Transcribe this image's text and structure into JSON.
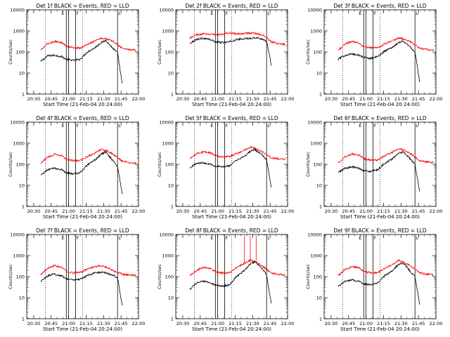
{
  "page": {
    "xlabel": "Start Time (21-Feb-04 20:24:00)",
    "ylabel": "Counts/sec",
    "x_ticks": [
      "20:30",
      "20:45",
      "21:00",
      "21:15",
      "21:30",
      "21:45",
      "22:00"
    ],
    "y_ticks": [
      "1",
      "10",
      "100",
      "1000",
      "10000"
    ],
    "colors": {
      "events": "#000000",
      "lld": "#ff0000"
    }
  },
  "chart_data": [
    {
      "type": "line",
      "title": "Det 1f BLACK = Events, RED = LLD",
      "xlabel": "Start Time (21-Feb-04 20:24:00)",
      "ylabel": "Counts/sec",
      "xlim": [
        "20:24",
        "22:00"
      ],
      "ylim": [
        1,
        10000
      ],
      "y_scale": "log",
      "x": [
        "20:36",
        "20:42",
        "20:48",
        "20:54",
        "20:58",
        "21:04",
        "21:10",
        "21:16",
        "21:22",
        "21:28",
        "21:32",
        "21:38",
        "21:42",
        "21:46",
        "21:52",
        "21:58"
      ],
      "series": [
        {
          "name": "Events",
          "values": [
            35,
            65,
            70,
            60,
            45,
            40,
            45,
            100,
            150,
            280,
            350,
            150,
            90,
            3,
            null,
            null
          ]
        },
        {
          "name": "LLD",
          "values": [
            120,
            250,
            320,
            280,
            190,
            160,
            150,
            230,
            330,
            450,
            420,
            320,
            220,
            150,
            130,
            120
          ]
        }
      ],
      "annotations": {
        "dotted_vlines": [
          "20:40",
          "21:12"
        ],
        "solid_vlines": [
          "20:58",
          "21:00",
          "21:06",
          "21:42"
        ],
        "markers": [
          "E",
          "F",
          "L"
        ]
      }
    },
    {
      "type": "line",
      "title": "Det 2f BLACK = Events, RED = LLD",
      "xlabel": "Start Time (21-Feb-04 20:24:00)",
      "ylabel": "Counts/sec",
      "xlim": [
        "20:24",
        "22:00"
      ],
      "ylim": [
        1,
        10000
      ],
      "y_scale": "log",
      "x": [
        "20:36",
        "20:42",
        "20:48",
        "20:54",
        "20:58",
        "21:04",
        "21:10",
        "21:16",
        "21:22",
        "21:28",
        "21:32",
        "21:38",
        "21:42",
        "21:46",
        "21:52",
        "21:58"
      ],
      "series": [
        {
          "name": "Events",
          "values": [
            260,
            400,
            450,
            380,
            300,
            280,
            300,
            380,
            420,
            450,
            480,
            420,
            320,
            25,
            null,
            null
          ]
        },
        {
          "name": "LLD",
          "values": [
            450,
            650,
            720,
            700,
            650,
            700,
            800,
            700,
            750,
            800,
            760,
            650,
            480,
            300,
            250,
            230
          ]
        }
      ],
      "annotations": {
        "dotted_vlines": [
          "20:40",
          "21:12"
        ],
        "solid_vlines": [
          "20:58",
          "21:00",
          "21:06",
          "21:42"
        ],
        "markers": [
          "E",
          "F",
          "L"
        ]
      }
    },
    {
      "type": "line",
      "title": "Det 3f BLACK = Events, RED = LLD",
      "xlabel": "Start Time (21-Feb-04 20:24:00)",
      "ylabel": "Counts/sec",
      "xlim": [
        "20:24",
        "22:00"
      ],
      "ylim": [
        1,
        10000
      ],
      "y_scale": "log",
      "x": [
        "20:36",
        "20:42",
        "20:48",
        "20:54",
        "20:58",
        "21:04",
        "21:10",
        "21:16",
        "21:22",
        "21:28",
        "21:32",
        "21:38",
        "21:42",
        "21:46",
        "21:52",
        "21:58"
      ],
      "series": [
        {
          "name": "Events",
          "values": [
            45,
            70,
            80,
            70,
            55,
            50,
            60,
            110,
            160,
            280,
            330,
            170,
            100,
            4,
            null,
            null
          ]
        },
        {
          "name": "LLD",
          "values": [
            120,
            240,
            320,
            270,
            180,
            160,
            160,
            240,
            330,
            450,
            420,
            310,
            220,
            150,
            130,
            120
          ]
        }
      ],
      "annotations": {
        "dotted_vlines": [
          "20:40",
          "21:12"
        ],
        "solid_vlines": [
          "20:58",
          "21:00",
          "21:06",
          "21:42"
        ],
        "markers": [
          "E",
          "F",
          "L"
        ]
      }
    },
    {
      "type": "line",
      "title": "Det 4f BLACK = Events, RED = LLD",
      "xlabel": "Start Time (21-Feb-04 20:24:00)",
      "ylabel": "Counts/sec",
      "xlim": [
        "20:24",
        "22:00"
      ],
      "ylim": [
        1,
        10000
      ],
      "y_scale": "log",
      "x": [
        "20:36",
        "20:42",
        "20:48",
        "20:54",
        "20:58",
        "21:04",
        "21:10",
        "21:16",
        "21:22",
        "21:28",
        "21:32",
        "21:38",
        "21:42",
        "21:46",
        "21:52",
        "21:58"
      ],
      "series": [
        {
          "name": "Events",
          "values": [
            30,
            55,
            65,
            55,
            40,
            35,
            40,
            90,
            150,
            300,
            380,
            150,
            80,
            4,
            null,
            null
          ]
        },
        {
          "name": "LLD",
          "values": [
            110,
            220,
            300,
            260,
            170,
            150,
            150,
            230,
            330,
            520,
            450,
            300,
            210,
            140,
            120,
            110
          ]
        }
      ],
      "annotations": {
        "dotted_vlines": [
          "20:40",
          "21:12"
        ],
        "solid_vlines": [
          "20:58",
          "21:00",
          "21:06",
          "21:42"
        ],
        "markers": [
          "E",
          "F",
          "L"
        ]
      }
    },
    {
      "type": "line",
      "title": "Det 5f BLACK = Events, RED = LLD",
      "xlabel": "Start Time (21-Feb-04 20:24:00)",
      "ylabel": "Counts/sec",
      "xlim": [
        "20:24",
        "22:00"
      ],
      "ylim": [
        1,
        10000
      ],
      "y_scale": "log",
      "x": [
        "20:36",
        "20:42",
        "20:48",
        "20:54",
        "20:58",
        "21:04",
        "21:10",
        "21:16",
        "21:22",
        "21:28",
        "21:32",
        "21:38",
        "21:42",
        "21:46",
        "21:52",
        "21:58"
      ],
      "series": [
        {
          "name": "Events",
          "values": [
            70,
            110,
            120,
            100,
            80,
            75,
            85,
            150,
            220,
            420,
            500,
            280,
            160,
            8,
            null,
            null
          ]
        },
        {
          "name": "LLD",
          "values": [
            180,
            320,
            400,
            350,
            260,
            230,
            230,
            320,
            430,
            650,
            580,
            400,
            290,
            200,
            180,
            170
          ]
        }
      ],
      "annotations": {
        "dotted_vlines": [
          "20:40",
          "21:12"
        ],
        "solid_vlines": [
          "20:58",
          "21:00",
          "21:06",
          "21:42"
        ],
        "markers": [
          "E",
          "F",
          "L"
        ]
      }
    },
    {
      "type": "line",
      "title": "Det 6f BLACK = Events, RED = LLD",
      "xlabel": "Start Time (21-Feb-04 20:24:00)",
      "ylabel": "Counts/sec",
      "xlim": [
        "20:24",
        "22:00"
      ],
      "ylim": [
        1,
        10000
      ],
      "y_scale": "log",
      "x": [
        "20:36",
        "20:42",
        "20:48",
        "20:54",
        "20:58",
        "21:04",
        "21:10",
        "21:16",
        "21:22",
        "21:28",
        "21:32",
        "21:38",
        "21:42",
        "21:46",
        "21:52",
        "21:58"
      ],
      "series": [
        {
          "name": "Events",
          "values": [
            40,
            65,
            75,
            65,
            50,
            45,
            55,
            110,
            170,
            330,
            400,
            180,
            100,
            5,
            null,
            null
          ]
        },
        {
          "name": "LLD",
          "values": [
            120,
            230,
            310,
            270,
            180,
            160,
            160,
            250,
            350,
            550,
            480,
            320,
            220,
            150,
            130,
            120
          ]
        }
      ],
      "annotations": {
        "dotted_vlines": [
          "20:40",
          "21:12"
        ],
        "solid_vlines": [
          "20:58",
          "21:00",
          "21:06",
          "21:42"
        ],
        "markers": [
          "E",
          "F",
          "L"
        ]
      }
    },
    {
      "type": "line",
      "title": "Det 7f BLACK = Events, RED = LLD",
      "xlabel": "Start Time (21-Feb-04 20:24:00)",
      "ylabel": "Counts/sec",
      "xlim": [
        "20:24",
        "22:00"
      ],
      "ylim": [
        1,
        10000
      ],
      "y_scale": "log",
      "x": [
        "20:36",
        "20:42",
        "20:48",
        "20:54",
        "20:58",
        "21:04",
        "21:10",
        "21:16",
        "21:22",
        "21:28",
        "21:32",
        "21:38",
        "21:42",
        "21:46",
        "21:52",
        "21:58"
      ],
      "series": [
        {
          "name": "Events",
          "values": [
            60,
            110,
            130,
            110,
            80,
            70,
            75,
            110,
            150,
            160,
            150,
            120,
            90,
            4,
            null,
            null
          ]
        },
        {
          "name": "LLD",
          "values": [
            120,
            250,
            330,
            280,
            180,
            150,
            160,
            220,
            300,
            330,
            280,
            200,
            160,
            130,
            120,
            115
          ]
        }
      ],
      "annotations": {
        "dotted_vlines": [
          "20:40",
          "21:12"
        ],
        "solid_vlines": [
          "20:58",
          "21:00",
          "21:06",
          "21:42"
        ],
        "markers": [
          "E",
          "F",
          "L"
        ]
      }
    },
    {
      "type": "line",
      "title": "Det 8f BLACK = Events, RED = LLD",
      "xlabel": "Start Time (21-Feb-04 20:24:00)",
      "ylabel": "Counts/sec",
      "xlim": [
        "20:24",
        "22:00"
      ],
      "ylim": [
        1,
        10000
      ],
      "y_scale": "log",
      "x": [
        "20:36",
        "20:42",
        "20:48",
        "20:54",
        "20:58",
        "21:04",
        "21:10",
        "21:16",
        "21:22",
        "21:28",
        "21:32",
        "21:38",
        "21:42",
        "21:46",
        "21:52",
        "21:58"
      ],
      "series": [
        {
          "name": "Events",
          "values": [
            25,
            50,
            60,
            50,
            40,
            35,
            40,
            100,
            180,
            400,
            520,
            250,
            120,
            5,
            null,
            null
          ]
        },
        {
          "name": "LLD",
          "values": [
            110,
            200,
            280,
            240,
            170,
            150,
            150,
            260,
            400,
            600,
            520,
            320,
            220,
            150,
            130,
            120
          ]
        }
      ],
      "annotations": {
        "dotted_vlines": [
          "20:40",
          "21:12"
        ],
        "solid_vlines": [
          "20:58",
          "21:00",
          "21:06",
          "21:42"
        ],
        "markers": [
          "E",
          "F",
          "L"
        ],
        "spikes": [
          "21:23",
          "21:28",
          "21:33"
        ]
      }
    },
    {
      "type": "line",
      "title": "Det 9f BLACK = Events, RED = LLD",
      "xlabel": "Start Time (21-Feb-04 20:24:00)",
      "ylabel": "Counts/sec",
      "xlim": [
        "20:24",
        "22:00"
      ],
      "ylim": [
        1,
        10000
      ],
      "y_scale": "log",
      "x": [
        "20:36",
        "20:42",
        "20:48",
        "20:54",
        "20:58",
        "21:04",
        "21:10",
        "21:16",
        "21:22",
        "21:28",
        "21:32",
        "21:38",
        "21:42",
        "21:46",
        "21:52",
        "21:58"
      ],
      "series": [
        {
          "name": "Events",
          "values": [
            35,
            60,
            70,
            60,
            45,
            40,
            50,
            110,
            180,
            380,
            450,
            180,
            100,
            5,
            null,
            null
          ]
        },
        {
          "name": "LLD",
          "values": [
            110,
            220,
            300,
            260,
            170,
            150,
            150,
            250,
            360,
            580,
            500,
            320,
            220,
            150,
            130,
            120
          ]
        }
      ],
      "annotations": {
        "dotted_vlines": [
          "20:40",
          "21:12"
        ],
        "solid_vlines": [
          "20:58",
          "21:00",
          "21:06",
          "21:42"
        ],
        "markers": [
          "E",
          "F",
          "L"
        ]
      }
    }
  ]
}
